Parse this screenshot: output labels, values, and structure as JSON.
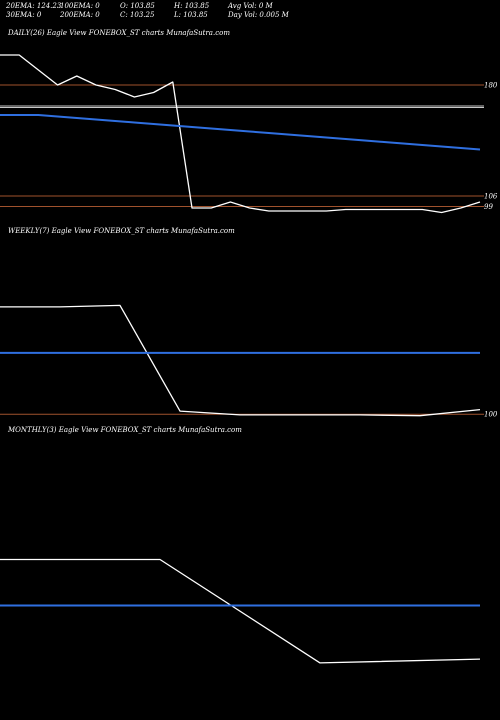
{
  "header": {
    "row1": [
      "20EMA: 124.23",
      "100EMA: 0",
      "O: 103.85",
      "H: 103.85",
      "Avg Vol: 0  M"
    ],
    "row2": [
      "30EMA: 0",
      "200EMA: 0",
      "C: 103.25",
      "L: 103.85",
      "Day Vol: 0.005 M"
    ]
  },
  "colors": {
    "background": "#000000",
    "price": "#ffffff",
    "ema": "#2f6fe0",
    "level": "#a0522d",
    "ref": "#c8c8c8"
  },
  "chart_data": [
    {
      "type": "line",
      "title": "DAILY(26) Eagle  View  FONEBOX_ST charts MunafaSutra.com",
      "ylim": [
        90,
        210
      ],
      "series": [
        {
          "values": [
            200,
            200,
            190,
            180,
            186,
            180,
            177,
            172,
            175,
            182,
            98,
            98,
            102,
            98,
            96,
            96,
            96,
            96,
            97,
            97,
            97,
            97,
            97,
            95,
            98,
            102
          ]
        },
        {
          "values": [
            160,
            160,
            160,
            159,
            158,
            157,
            156,
            155,
            154,
            153,
            152,
            151,
            150,
            149,
            148,
            147,
            146,
            145,
            144,
            143,
            142,
            141,
            140,
            139,
            138,
            137
          ]
        }
      ],
      "levels": [
        {
          "value": 180,
          "label": "180",
          "kind": "level"
        },
        {
          "value": 166,
          "label": "",
          "kind": "ref"
        },
        {
          "value": 165,
          "label": "",
          "kind": "ref"
        },
        {
          "value": 106,
          "label": "106",
          "kind": "level"
        },
        {
          "value": 99,
          "label": "99",
          "kind": "level"
        }
      ]
    },
    {
      "type": "line",
      "title": "WEEKLY(7) Eagle  View  FONEBOX_ST charts MunafaSutra.com",
      "ylim": [
        95,
        330
      ],
      "series": [
        {
          "values": [
            240,
            240,
            242,
            104,
            99,
            99,
            99,
            98,
            106
          ]
        },
        {
          "values": [
            180,
            180,
            180,
            180,
            180,
            180,
            180,
            180,
            180
          ]
        }
      ],
      "levels": [
        {
          "value": 100,
          "label": "100",
          "kind": "level"
        }
      ]
    },
    {
      "type": "line",
      "title": "MONTHLY(3) Eagle  View  FONEBOX_ST charts MunafaSutra.com",
      "ylim": [
        50,
        400
      ],
      "series": [
        {
          "values": [
            240,
            240,
            105,
            110
          ]
        },
        {
          "values": [
            180,
            180,
            180,
            180
          ]
        }
      ],
      "levels": []
    }
  ]
}
